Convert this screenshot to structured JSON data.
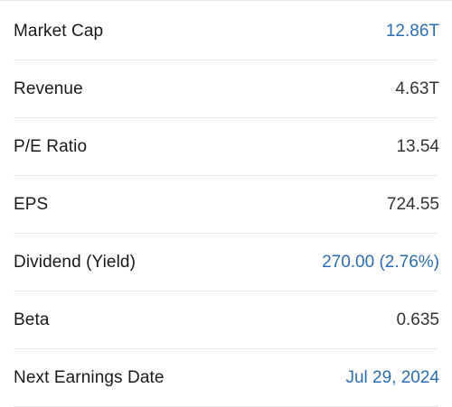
{
  "stats": [
    {
      "label": "Market Cap",
      "value": "12.86T",
      "link": true
    },
    {
      "label": "Revenue",
      "value": "4.63T",
      "link": false
    },
    {
      "label": "P/E Ratio",
      "value": "13.54",
      "link": false
    },
    {
      "label": "EPS",
      "value": "724.55",
      "link": false
    },
    {
      "label": "Dividend (Yield)",
      "value": "270.00 (2.76%)",
      "link": true
    },
    {
      "label": "Beta",
      "value": "0.635",
      "link": false
    },
    {
      "label": "Next Earnings Date",
      "value": "Jul 29, 2024",
      "link": true
    }
  ],
  "colors": {
    "link": "#2b6cb0",
    "text": "#1a1a1a",
    "value": "#333333",
    "divider": "#e6e6e6"
  }
}
